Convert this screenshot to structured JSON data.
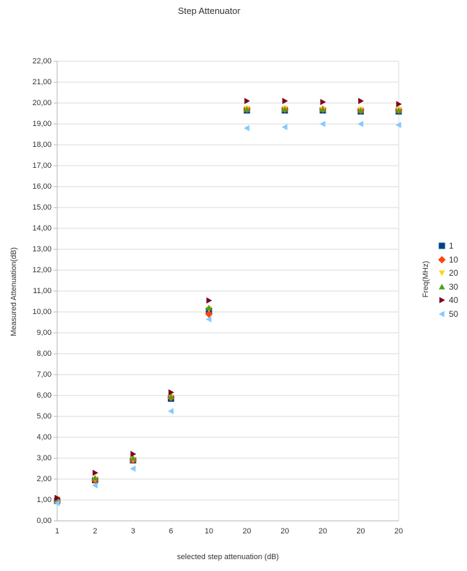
{
  "title": "Step Attenuator",
  "colors": {
    "background": "#ffffff",
    "gridline": "#d9d9d9",
    "axis_line": "#b3b3b3",
    "text": "#333333"
  },
  "chart_data": {
    "type": "scatter",
    "title": "Step Attenuator",
    "xlabel": "selected step attenuation (dB)",
    "ylabel": "Measured Attenuation(dB)",
    "legend_title": "Freq(MHz)",
    "legend_position": "right",
    "grid": true,
    "ylim": [
      0,
      22
    ],
    "y_tick_step": 1,
    "y_tick_labels": [
      "0,00",
      "1,00",
      "2,00",
      "3,00",
      "4,00",
      "5,00",
      "6,00",
      "7,00",
      "8,00",
      "9,00",
      "10,00",
      "11,00",
      "12,00",
      "13,00",
      "14,00",
      "15,00",
      "16,00",
      "17,00",
      "18,00",
      "19,00",
      "20,00",
      "21,00",
      "22,00"
    ],
    "categories": [
      "1",
      "2",
      "3",
      "6",
      "10",
      "20",
      "20",
      "20",
      "20",
      "20"
    ],
    "series": [
      {
        "name": "1",
        "marker": "square",
        "color": "#004586",
        "values": [
          0.95,
          1.95,
          2.9,
          5.85,
          10.05,
          19.65,
          19.65,
          19.65,
          19.6,
          19.6
        ]
      },
      {
        "name": "10",
        "marker": "diamond",
        "color": "#FF420E",
        "values": [
          0.95,
          1.95,
          2.9,
          5.9,
          9.9,
          19.7,
          19.7,
          19.7,
          19.65,
          19.65
        ]
      },
      {
        "name": "20",
        "marker": "triangle-down",
        "color": "#FFD320",
        "values": [
          1.05,
          2.0,
          2.95,
          5.95,
          10.15,
          19.75,
          19.75,
          19.7,
          19.7,
          19.7
        ]
      },
      {
        "name": "30",
        "marker": "triangle-up",
        "color": "#579D1C",
        "values": [
          0.95,
          2.05,
          3.0,
          5.95,
          10.2,
          19.7,
          19.7,
          19.7,
          19.65,
          19.65
        ]
      },
      {
        "name": "40",
        "marker": "triangle-right",
        "color": "#7E0021",
        "values": [
          1.1,
          2.3,
          3.2,
          6.15,
          10.55,
          20.1,
          20.1,
          20.05,
          20.1,
          19.95
        ]
      },
      {
        "name": "50",
        "marker": "triangle-left",
        "color": "#83CAFF",
        "values": [
          0.85,
          1.7,
          2.5,
          5.25,
          9.65,
          18.8,
          18.85,
          19.0,
          19.0,
          18.95
        ]
      }
    ]
  }
}
